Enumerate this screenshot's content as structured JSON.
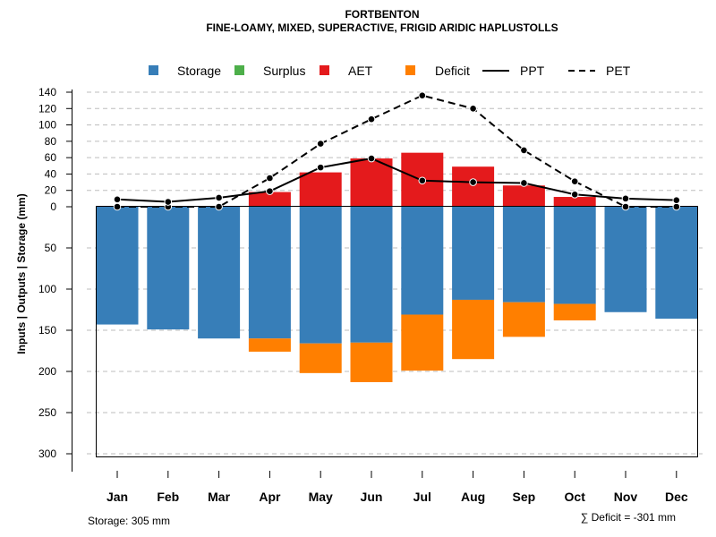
{
  "chart_data": {
    "type": "bar",
    "title": "FORTBENTON",
    "subtitle": "FINE-LOAMY, MIXED, SUPERACTIVE, FRIGID ARIDIC HAPLUSTOLLS",
    "ylabel": "Inputs | Outputs | Storage     (mm)",
    "categories": [
      "Jan",
      "Feb",
      "Mar",
      "Apr",
      "May",
      "Jun",
      "Jul",
      "Aug",
      "Sep",
      "Oct",
      "Nov",
      "Dec"
    ],
    "upper_axis": {
      "ylim": [
        0,
        140
      ],
      "ticks": [
        "140",
        "120",
        "100",
        "80",
        "60",
        "40",
        "20",
        "0"
      ]
    },
    "lower_axis": {
      "ylim": [
        0,
        305
      ],
      "ticks": [
        "50",
        "100",
        "150",
        "200",
        "250",
        "300"
      ]
    },
    "legend": [
      {
        "label": "Storage",
        "color": "#377eb8",
        "kind": "box"
      },
      {
        "label": "Surplus",
        "color": "#4daf4a",
        "kind": "box"
      },
      {
        "label": "AET",
        "color": "#e41a1c",
        "kind": "box"
      },
      {
        "label": "Deficit",
        "color": "#ff7f00",
        "kind": "box"
      },
      {
        "label": "PPT",
        "color": "#000000",
        "kind": "solid"
      },
      {
        "label": "PET",
        "color": "#000000",
        "kind": "dashed"
      }
    ],
    "series": [
      {
        "name": "Storage",
        "values": [
          143,
          149,
          160,
          160,
          166,
          165,
          131,
          113,
          116,
          118,
          128,
          136
        ]
      },
      {
        "name": "Surplus",
        "values": [
          0,
          0,
          0,
          0,
          0,
          0,
          0,
          0,
          0,
          0,
          0,
          0
        ]
      },
      {
        "name": "AET",
        "values": [
          0,
          0,
          0,
          18,
          42,
          59,
          66,
          49,
          26,
          12,
          0,
          0
        ]
      },
      {
        "name": "Deficit",
        "values": [
          0,
          0,
          0,
          16,
          36,
          48,
          68,
          72,
          42,
          20,
          0,
          0
        ]
      },
      {
        "name": "PPT",
        "values": [
          9,
          6,
          11,
          19,
          48,
          59,
          32,
          30,
          29,
          15,
          10,
          8
        ]
      },
      {
        "name": "PET",
        "values": [
          0,
          0,
          0,
          35,
          77,
          107,
          136,
          120,
          69,
          31,
          0,
          0
        ]
      }
    ],
    "colors": {
      "storage": "#377eb8",
      "surplus": "#4daf4a",
      "aet": "#e41a1c",
      "deficit": "#ff7f00",
      "line": "#000000",
      "grid": "#bdbdbd"
    }
  },
  "footer": {
    "storage_note": "Storage: 305 mm",
    "deficit_note": "∑ Deficit = -301 mm"
  }
}
